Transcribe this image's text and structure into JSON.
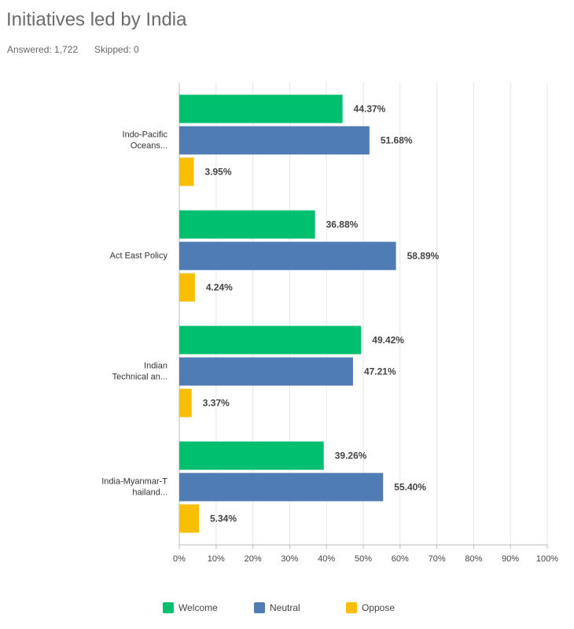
{
  "chart_data": {
    "type": "hbar",
    "title": "Initiatives led by India",
    "answered": "Answered: 1,722",
    "skipped": "Skipped: 0",
    "categories": [
      [
        "Indo-Pacific",
        "Oceans..."
      ],
      [
        "Act East Policy"
      ],
      [
        "Indian",
        "Technical an..."
      ],
      [
        "India-Myanmar-T",
        "hailand..."
      ]
    ],
    "series": [
      {
        "name": "Welcome",
        "color": "#00bf6f",
        "values": [
          44.37,
          36.88,
          49.42,
          39.26
        ],
        "value_labels": [
          "44.37%",
          "36.88%",
          "49.42%",
          "39.26%"
        ]
      },
      {
        "name": "Neutral",
        "color": "#507cb6",
        "values": [
          51.68,
          58.89,
          47.21,
          55.4
        ],
        "value_labels": [
          "51.68%",
          "58.89%",
          "47.21%",
          "55.40%"
        ]
      },
      {
        "name": "Oppose",
        "color": "#f9be00",
        "values": [
          3.95,
          4.24,
          3.37,
          5.34
        ],
        "value_labels": [
          "3.95%",
          "4.24%",
          "3.37%",
          "5.34%"
        ]
      }
    ],
    "xlim": [
      0,
      100
    ],
    "xticks": [
      {
        "value": 0,
        "label": "0%"
      },
      {
        "value": 10,
        "label": "10%"
      },
      {
        "value": 20,
        "label": "20%"
      },
      {
        "value": 30,
        "label": "30%"
      },
      {
        "value": 40,
        "label": "40%"
      },
      {
        "value": 50,
        "label": "50%"
      },
      {
        "value": 60,
        "label": "60%"
      },
      {
        "value": 70,
        "label": "70%"
      },
      {
        "value": 80,
        "label": "80%"
      },
      {
        "value": 90,
        "label": "90%"
      },
      {
        "value": 100,
        "label": "100%"
      }
    ],
    "grid": true
  }
}
